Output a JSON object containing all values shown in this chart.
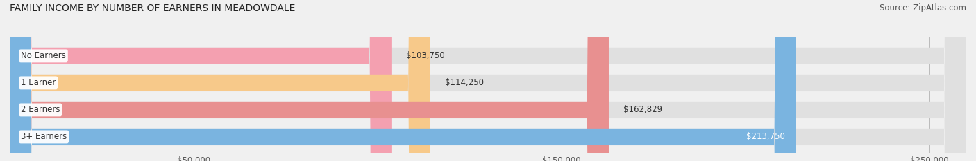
{
  "title": "FAMILY INCOME BY NUMBER OF EARNERS IN MEADOWDALE",
  "source": "Source: ZipAtlas.com",
  "categories": [
    "No Earners",
    "1 Earner",
    "2 Earners",
    "3+ Earners"
  ],
  "values": [
    103750,
    114250,
    162829,
    213750
  ],
  "bar_colors": [
    "#f4a0b0",
    "#f7c98a",
    "#e89090",
    "#7ab4e0"
  ],
  "label_colors": [
    "#333333",
    "#333333",
    "#333333",
    "#ffffff"
  ],
  "value_labels": [
    "$103,750",
    "$114,250",
    "$162,829",
    "$213,750"
  ],
  "tick_labels": [
    "$50,000",
    "$150,000",
    "$250,000"
  ],
  "tick_values": [
    50000,
    150000,
    250000
  ],
  "xlim": [
    0,
    260000
  ],
  "background_color": "#f0f0f0",
  "bar_background_color": "#e0e0e0",
  "title_fontsize": 10,
  "source_fontsize": 8.5,
  "label_fontsize": 8.5,
  "value_fontsize": 8.5,
  "tick_fontsize": 8.5
}
